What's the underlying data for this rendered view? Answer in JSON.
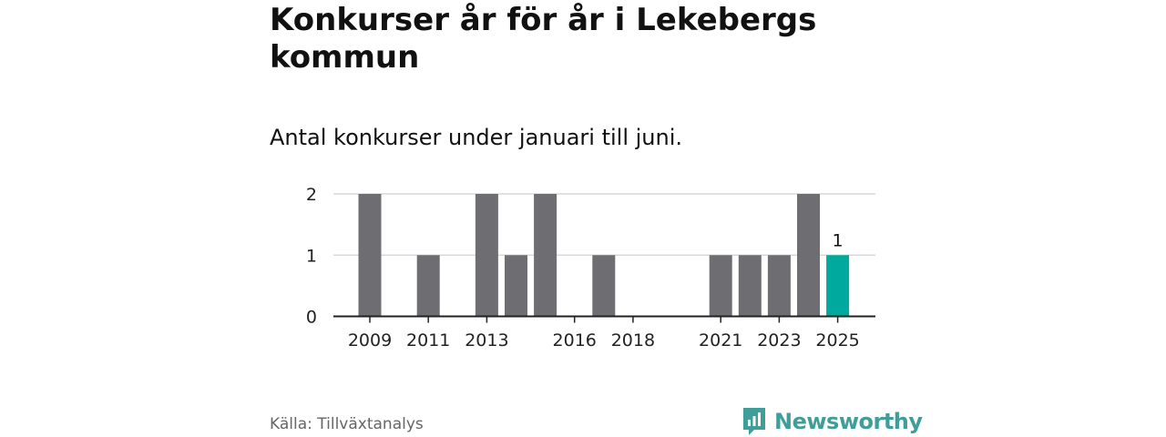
{
  "header": {
    "title": "Konkurser år för år i Lekebergs kommun",
    "subtitle": "Antal konkurser under januari till juni."
  },
  "footer": {
    "source": "Källa: Tillväxtanalys",
    "brand": "Newsworthy"
  },
  "colors": {
    "bar": "#6e6d72",
    "highlight": "#00a99d",
    "grid": "#d9d9d9",
    "axis": "#222222",
    "brand": "#3f9f98"
  },
  "chart_data": {
    "type": "bar",
    "categories": [
      "2009",
      "2010",
      "2011",
      "2012",
      "2013",
      "2014",
      "2015",
      "2016",
      "2017",
      "2018",
      "2019",
      "2020",
      "2021",
      "2022",
      "2023",
      "2024",
      "2025"
    ],
    "values": [
      2,
      0,
      1,
      0,
      2,
      1,
      2,
      0,
      1,
      0,
      0,
      0,
      1,
      1,
      1,
      2,
      1
    ],
    "tick_labels": [
      "2009",
      "2011",
      "2013",
      "2016",
      "2018",
      "2021",
      "2023",
      "2025"
    ],
    "y_ticks": [
      0,
      1,
      2
    ],
    "ylim": [
      0,
      2
    ],
    "highlight_category": "2025",
    "highlight_label": "1",
    "grid": true
  }
}
